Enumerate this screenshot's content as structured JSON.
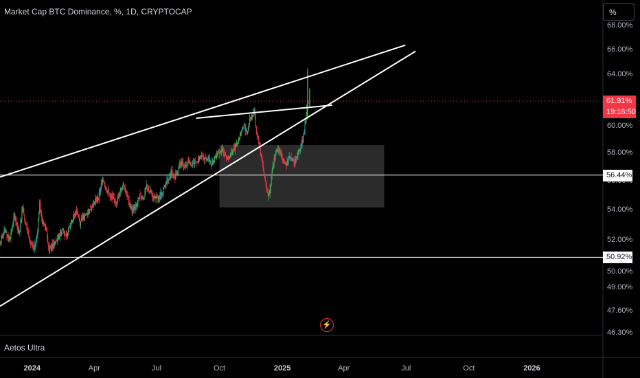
{
  "header": {
    "title": "Market Cap BTC Dominance, %, 1D, CRYPTOCAP",
    "unit_button": "%"
  },
  "indicator": {
    "name": "Aetos Ultra"
  },
  "icons": {
    "alert": "lightning-icon"
  },
  "colors": {
    "background": "#000000",
    "up": "#26a69a",
    "up_bright": "#4caf50",
    "down": "#f23645",
    "trendline": "#ffffff",
    "zone": "#3a3a3a"
  },
  "price_tags": {
    "current_price": "61.91%",
    "countdown": "19:16:50",
    "upper_level": "56.44%",
    "lower_level": "50.92%"
  },
  "chart_data": {
    "type": "candlestick",
    "title": "Market Cap BTC Dominance, %, 1D, CRYPTOCAP",
    "y_scale": "log",
    "y_ticks": [
      "68.00%",
      "66.00%",
      "64.00%",
      "62.00%",
      "60.00%",
      "58.00%",
      "56.00%",
      "54.00%",
      "52.00%",
      "50.00%",
      "49.00%",
      "47.60%",
      "46.30%"
    ],
    "y_tick_values": [
      68,
      66,
      64,
      62,
      60,
      58,
      56,
      54,
      52,
      50,
      49,
      47.6,
      46.3
    ],
    "x_ticks": [
      "2024",
      "Apr",
      "Jul",
      "Oct",
      "2025",
      "Apr",
      "Jul",
      "Oct",
      "2026"
    ],
    "x_tick_dates": [
      "2024-01-01",
      "2024-04-01",
      "2024-07-01",
      "2024-10-01",
      "2025-01-01",
      "2025-04-01",
      "2025-07-01",
      "2025-10-01",
      "2026-01-01"
    ],
    "x_range": [
      "2023-11-15",
      "2026-04-15"
    ],
    "y_range": [
      46.3,
      68.8
    ],
    "last_value": 61.91,
    "horizontal_levels": [
      56.44,
      50.92
    ],
    "series": [
      {
        "type": "close_path",
        "points": [
          [
            "2023-11-15",
            51.8
          ],
          [
            "2023-11-22",
            52.6
          ],
          [
            "2023-11-29",
            52.0
          ],
          [
            "2023-12-06",
            53.6
          ],
          [
            "2023-12-13",
            52.4
          ],
          [
            "2023-12-18",
            54.3
          ],
          [
            "2023-12-22",
            53.2
          ],
          [
            "2023-12-29",
            52.0
          ],
          [
            "2024-01-03",
            51.3
          ],
          [
            "2024-01-08",
            52.3
          ],
          [
            "2024-01-12",
            54.4
          ],
          [
            "2024-01-16",
            53.2
          ],
          [
            "2024-01-22",
            52.7
          ],
          [
            "2024-01-26",
            51.3
          ],
          [
            "2024-01-30",
            51.6
          ],
          [
            "2024-02-04",
            51.9
          ],
          [
            "2024-02-10",
            52.3
          ],
          [
            "2024-02-15",
            52.8
          ],
          [
            "2024-02-20",
            52.1
          ],
          [
            "2024-02-25",
            53.0
          ],
          [
            "2024-03-01",
            53.5
          ],
          [
            "2024-03-06",
            54.0
          ],
          [
            "2024-03-11",
            53.2
          ],
          [
            "2024-03-17",
            53.6
          ],
          [
            "2024-03-22",
            53.8
          ],
          [
            "2024-03-27",
            54.2
          ],
          [
            "2024-04-02",
            54.6
          ],
          [
            "2024-04-07",
            54.9
          ],
          [
            "2024-04-10",
            55.5
          ],
          [
            "2024-04-13",
            56.3
          ],
          [
            "2024-04-18",
            55.5
          ],
          [
            "2024-04-23",
            55.1
          ],
          [
            "2024-04-28",
            54.8
          ],
          [
            "2024-05-03",
            54.6
          ],
          [
            "2024-05-08",
            55.2
          ],
          [
            "2024-05-13",
            55.7
          ],
          [
            "2024-05-18",
            55.2
          ],
          [
            "2024-05-22",
            54.4
          ],
          [
            "2024-05-26",
            54.0
          ],
          [
            "2024-06-01",
            54.3
          ],
          [
            "2024-06-06",
            55.0
          ],
          [
            "2024-06-11",
            54.7
          ],
          [
            "2024-06-16",
            55.6
          ],
          [
            "2024-06-21",
            55.3
          ],
          [
            "2024-06-26",
            55.0
          ],
          [
            "2024-07-01",
            54.8
          ],
          [
            "2024-07-06",
            55.0
          ],
          [
            "2024-07-12",
            55.6
          ],
          [
            "2024-07-17",
            56.1
          ],
          [
            "2024-07-23",
            56.7
          ],
          [
            "2024-07-28",
            56.3
          ],
          [
            "2024-08-02",
            56.9
          ],
          [
            "2024-08-07",
            57.3
          ],
          [
            "2024-08-12",
            57.0
          ],
          [
            "2024-08-17",
            57.5
          ],
          [
            "2024-08-22",
            57.1
          ],
          [
            "2024-08-28",
            57.4
          ],
          [
            "2024-09-03",
            57.8
          ],
          [
            "2024-09-09",
            57.5
          ],
          [
            "2024-09-14",
            57.7
          ],
          [
            "2024-09-19",
            57.2
          ],
          [
            "2024-09-24",
            57.6
          ],
          [
            "2024-09-29",
            58.0
          ],
          [
            "2024-10-04",
            58.3
          ],
          [
            "2024-10-09",
            58.0
          ],
          [
            "2024-10-14",
            57.6
          ],
          [
            "2024-10-19",
            58.0
          ],
          [
            "2024-10-24",
            58.5
          ],
          [
            "2024-10-29",
            59.0
          ],
          [
            "2024-11-02",
            59.6
          ],
          [
            "2024-11-06",
            60.1
          ],
          [
            "2024-11-10",
            59.4
          ],
          [
            "2024-11-14",
            60.4
          ],
          [
            "2024-11-18",
            60.9
          ],
          [
            "2024-11-21",
            61.2
          ],
          [
            "2024-11-24",
            59.6
          ],
          [
            "2024-11-28",
            58.8
          ],
          [
            "2024-12-02",
            57.4
          ],
          [
            "2024-12-06",
            56.3
          ],
          [
            "2024-12-09",
            55.5
          ],
          [
            "2024-12-12",
            55.0
          ],
          [
            "2024-12-16",
            56.3
          ],
          [
            "2024-12-20",
            57.6
          ],
          [
            "2024-12-25",
            58.3
          ],
          [
            "2024-12-30",
            58.0
          ],
          [
            "2025-01-03",
            57.4
          ],
          [
            "2025-01-07",
            57.2
          ],
          [
            "2025-01-11",
            57.8
          ],
          [
            "2025-01-15",
            57.5
          ],
          [
            "2025-01-19",
            57.3
          ],
          [
            "2025-01-23",
            57.9
          ],
          [
            "2025-01-27",
            58.4
          ],
          [
            "2025-01-31",
            59.0
          ],
          [
            "2025-02-04",
            60.3
          ],
          [
            "2025-02-06",
            61.5
          ],
          [
            "2025-02-08",
            61.91
          ]
        ]
      }
    ],
    "trendlines": [
      {
        "name": "",
        "from": [
          "2023-11-15",
          56.3
        ],
        "to": [
          "2025-06-30",
          66.4
        ]
      },
      {
        "name": "",
        "from": [
          "2023-11-15",
          47.9
        ],
        "to": [
          "2025-07-15",
          65.9
        ]
      },
      {
        "name": "",
        "from": [
          "2024-08-28",
          60.6
        ],
        "to": [
          "2025-03-15",
          61.6
        ]
      }
    ],
    "zone": {
      "from": [
        "2024-10-01",
        58.6
      ],
      "to": [
        "2025-05-30",
        54.2
      ]
    },
    "annotations": [
      {
        "text": "61.91%",
        "value": 61.91
      },
      {
        "text": "19:16:50"
      }
    ]
  }
}
